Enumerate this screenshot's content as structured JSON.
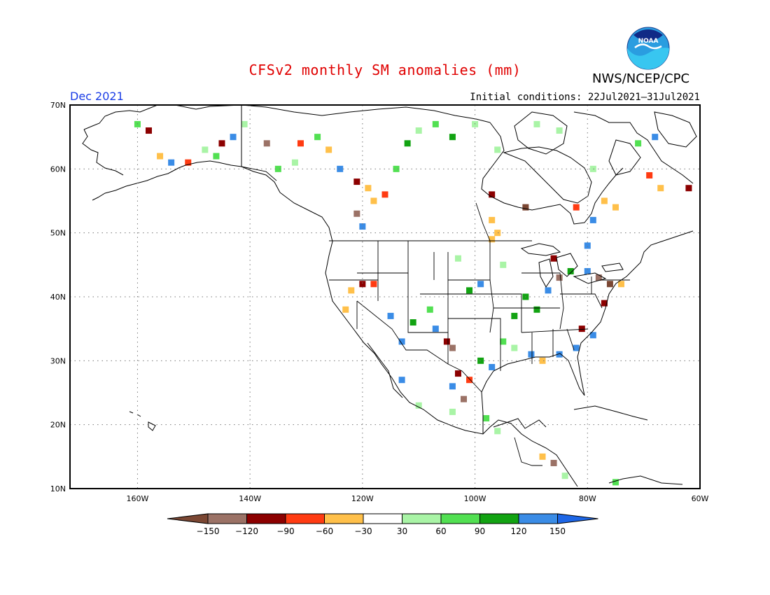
{
  "header": {
    "title": "CFSv2 monthly SM anomalies (mm)",
    "org": "NWS/NCEP/CPC",
    "logo_text": "NOAA",
    "month": "Dec 2021",
    "initial_conditions": "Initial conditions: 22Jul2021–31Jul2021"
  },
  "map": {
    "lon_ticks": [
      "160W",
      "140W",
      "120W",
      "100W",
      "80W",
      "60W"
    ],
    "lat_ticks": [
      "70N",
      "60N",
      "50N",
      "40N",
      "30N",
      "20N",
      "10N"
    ],
    "lon_range": [
      -172,
      -60
    ],
    "lat_range": [
      10,
      70
    ],
    "grid": "dotted"
  },
  "colorbar": {
    "labels": [
      "−150",
      "−120",
      "−90",
      "−60",
      "−30",
      "30",
      "60",
      "90",
      "120",
      "150"
    ],
    "colors": [
      "#7b4733",
      "#9b7266",
      "#8c0000",
      "#ff3b12",
      "#ffc04a",
      "#ffffff",
      "#a9f4a6",
      "#52e052",
      "#12a312",
      "#3a8ce6",
      "#1d66e6"
    ]
  },
  "anomaly_cells": [
    {
      "lon": -169,
      "lat": 64,
      "c": 5
    },
    {
      "lon": -163,
      "lat": 67,
      "c": 5
    },
    {
      "lon": -160,
      "lat": 67,
      "c": 7
    },
    {
      "lon": -158,
      "lat": 66,
      "c": 2
    },
    {
      "lon": -156,
      "lat": 62,
      "c": 4
    },
    {
      "lon": -154,
      "lat": 61,
      "c": 9
    },
    {
      "lon": -151,
      "lat": 61,
      "c": 3
    },
    {
      "lon": -148,
      "lat": 63,
      "c": 6
    },
    {
      "lon": -145,
      "lat": 64,
      "c": 2
    },
    {
      "lon": -146,
      "lat": 62,
      "c": 7
    },
    {
      "lon": -143,
      "lat": 65,
      "c": 9
    },
    {
      "lon": -141,
      "lat": 67,
      "c": 6
    },
    {
      "lon": -137,
      "lat": 64,
      "c": 1
    },
    {
      "lon": -135,
      "lat": 60,
      "c": 7
    },
    {
      "lon": -132,
      "lat": 61,
      "c": 6
    },
    {
      "lon": -131,
      "lat": 64,
      "c": 3
    },
    {
      "lon": -128,
      "lat": 65,
      "c": 7
    },
    {
      "lon": -126,
      "lat": 63,
      "c": 4
    },
    {
      "lon": -124,
      "lat": 60,
      "c": 9
    },
    {
      "lon": -121,
      "lat": 58,
      "c": 2
    },
    {
      "lon": -119,
      "lat": 57,
      "c": 4
    },
    {
      "lon": -118,
      "lat": 55,
      "c": 4
    },
    {
      "lon": -121,
      "lat": 53,
      "c": 1
    },
    {
      "lon": -120,
      "lat": 51,
      "c": 9
    },
    {
      "lon": -116,
      "lat": 56,
      "c": 3
    },
    {
      "lon": -114,
      "lat": 60,
      "c": 7
    },
    {
      "lon": -112,
      "lat": 64,
      "c": 8
    },
    {
      "lon": -110,
      "lat": 66,
      "c": 6
    },
    {
      "lon": -107,
      "lat": 67,
      "c": 7
    },
    {
      "lon": -104,
      "lat": 65,
      "c": 8
    },
    {
      "lon": -100,
      "lat": 67,
      "c": 6
    },
    {
      "lon": -96,
      "lat": 63,
      "c": 6
    },
    {
      "lon": -97,
      "lat": 56,
      "c": 2
    },
    {
      "lon": -91,
      "lat": 54,
      "c": 0
    },
    {
      "lon": -97,
      "lat": 52,
      "c": 4
    },
    {
      "lon": -96,
      "lat": 50,
      "c": 4
    },
    {
      "lon": -82,
      "lat": 54,
      "c": 3
    },
    {
      "lon": -79,
      "lat": 52,
      "c": 9
    },
    {
      "lon": -77,
      "lat": 55,
      "c": 4
    },
    {
      "lon": -75,
      "lat": 54,
      "c": 4
    },
    {
      "lon": -69,
      "lat": 59,
      "c": 3
    },
    {
      "lon": -67,
      "lat": 57,
      "c": 4
    },
    {
      "lon": -62,
      "lat": 57,
      "c": 2
    },
    {
      "lon": -68,
      "lat": 65,
      "c": 9
    },
    {
      "lon": -71,
      "lat": 64,
      "c": 7
    },
    {
      "lon": -85,
      "lat": 66,
      "c": 6
    },
    {
      "lon": -89,
      "lat": 67,
      "c": 6
    },
    {
      "lon": -79,
      "lat": 60,
      "c": 6
    },
    {
      "lon": -122,
      "lat": 41,
      "c": 4
    },
    {
      "lon": -123,
      "lat": 38,
      "c": 4
    },
    {
      "lon": -120,
      "lat": 42,
      "c": 2
    },
    {
      "lon": -118,
      "lat": 42,
      "c": 3
    },
    {
      "lon": -115,
      "lat": 37,
      "c": 9
    },
    {
      "lon": -113,
      "lat": 33,
      "c": 9
    },
    {
      "lon": -111,
      "lat": 36,
      "c": 8
    },
    {
      "lon": -108,
      "lat": 38,
      "c": 7
    },
    {
      "lon": -107,
      "lat": 35,
      "c": 9
    },
    {
      "lon": -105,
      "lat": 33,
      "c": 2
    },
    {
      "lon": -104,
      "lat": 32,
      "c": 1
    },
    {
      "lon": -103,
      "lat": 28,
      "c": 2
    },
    {
      "lon": -104,
      "lat": 26,
      "c": 9
    },
    {
      "lon": -102,
      "lat": 24,
      "c": 1
    },
    {
      "lon": -101,
      "lat": 27,
      "c": 3
    },
    {
      "lon": -99,
      "lat": 30,
      "c": 8
    },
    {
      "lon": -97,
      "lat": 29,
      "c": 9
    },
    {
      "lon": -95,
      "lat": 33,
      "c": 7
    },
    {
      "lon": -93,
      "lat": 37,
      "c": 8
    },
    {
      "lon": -91,
      "lat": 40,
      "c": 8
    },
    {
      "lon": -89,
      "lat": 38,
      "c": 8
    },
    {
      "lon": -87,
      "lat": 41,
      "c": 9
    },
    {
      "lon": -85,
      "lat": 43,
      "c": 1
    },
    {
      "lon": -83,
      "lat": 44,
      "c": 8
    },
    {
      "lon": -80,
      "lat": 44,
      "c": 9
    },
    {
      "lon": -78,
      "lat": 43,
      "c": 1
    },
    {
      "lon": -76,
      "lat": 42,
      "c": 0
    },
    {
      "lon": -74,
      "lat": 42,
      "c": 4
    },
    {
      "lon": -77,
      "lat": 39,
      "c": 2
    },
    {
      "lon": -79,
      "lat": 34,
      "c": 9
    },
    {
      "lon": -81,
      "lat": 35,
      "c": 2
    },
    {
      "lon": -82,
      "lat": 32,
      "c": 9
    },
    {
      "lon": -85,
      "lat": 31,
      "c": 9
    },
    {
      "lon": -88,
      "lat": 30,
      "c": 4
    },
    {
      "lon": -90,
      "lat": 31,
      "c": 9
    },
    {
      "lon": -93,
      "lat": 32,
      "c": 6
    },
    {
      "lon": -99,
      "lat": 42,
      "c": 9
    },
    {
      "lon": -101,
      "lat": 41,
      "c": 8
    },
    {
      "lon": -95,
      "lat": 45,
      "c": 6
    },
    {
      "lon": -103,
      "lat": 46,
      "c": 6
    },
    {
      "lon": -97,
      "lat": 49,
      "c": 4
    },
    {
      "lon": -86,
      "lat": 46,
      "c": 2
    },
    {
      "lon": -80,
      "lat": 48,
      "c": 9
    },
    {
      "lon": -88,
      "lat": 15,
      "c": 4
    },
    {
      "lon": -86,
      "lat": 14,
      "c": 1
    },
    {
      "lon": -84,
      "lat": 12,
      "c": 6
    },
    {
      "lon": -113,
      "lat": 27,
      "c": 9
    },
    {
      "lon": -110,
      "lat": 23,
      "c": 6
    },
    {
      "lon": -104,
      "lat": 22,
      "c": 6
    },
    {
      "lon": -98,
      "lat": 21,
      "c": 7
    },
    {
      "lon": -96,
      "lat": 19,
      "c": 6
    },
    {
      "lon": -75,
      "lat": 11,
      "c": 7
    }
  ]
}
